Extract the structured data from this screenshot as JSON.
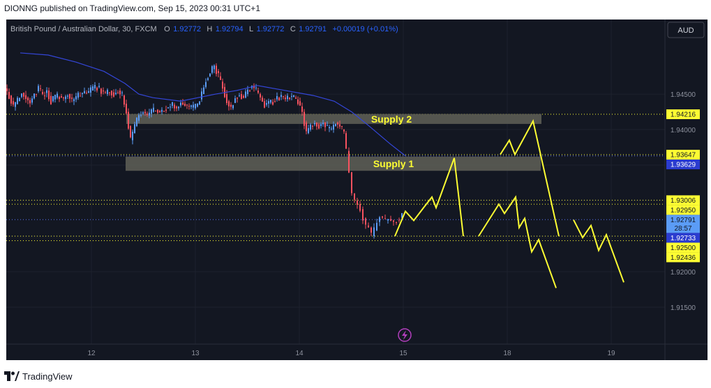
{
  "header": {
    "text": "DIONNG published on TradingView.com, Sep 15, 2023 00:31 UTC+1"
  },
  "footer": {
    "brand": "TradingView"
  },
  "symbol_bar": {
    "name": "British Pound / Australian Dollar, 30, FXCM",
    "o_label": "O",
    "o_value": "1.92772",
    "h_label": "H",
    "h_value": "1.92794",
    "l_label": "L",
    "l_value": "1.92772",
    "c_label": "C",
    "c_value": "1.92791",
    "change": "+0.00019 (+0.01%)"
  },
  "currency_button": "AUD",
  "chart_data": {
    "type": "candlestick",
    "x_ticks": [
      "12",
      "13",
      "14",
      "15",
      "18",
      "19"
    ],
    "y_ticks": [
      "1.94500",
      "1.94000",
      "1.93500",
      "1.93000",
      "1.92500",
      "1.92000",
      "1.91500"
    ],
    "ylim": [
      1.9098,
      1.9555
    ],
    "colors": {
      "up": "#5b9cf6",
      "down": "#f7525f",
      "ma": "#3446d9",
      "projection": "#fdfd33",
      "zone": "#5d5f55"
    },
    "zones": [
      {
        "label": "Supply 2",
        "y_high": 1.9422,
        "y_low": 1.9408
      },
      {
        "label": "Supply 1",
        "y_high": 1.9362,
        "y_low": 1.9342
      }
    ],
    "price_levels": [
      {
        "value": 1.94216,
        "label": "1.94216",
        "style": "yellow"
      },
      {
        "value": 1.93647,
        "label": "1.93647",
        "style": "yellow"
      },
      {
        "value": 1.93629,
        "label": "1.93629",
        "style": "blue"
      },
      {
        "value": 1.93006,
        "label": "1.93006",
        "style": "yellow"
      },
      {
        "value": 1.9295,
        "label": "1.92950",
        "style": "yellow"
      },
      {
        "value": 1.92791,
        "label": "1.92791",
        "style": "last"
      },
      {
        "value": 1.92733,
        "label": "1.92733",
        "style": "blue"
      },
      {
        "value": 1.925,
        "label": "1.92500",
        "style": "yellow"
      },
      {
        "value": 1.92436,
        "label": "1.92436",
        "style": "yellow"
      }
    ],
    "countdown": "28:57",
    "price_path": [
      [
        0,
        1.9458
      ],
      [
        6,
        1.9448
      ],
      [
        12,
        1.9432
      ],
      [
        18,
        1.944
      ],
      [
        24,
        1.9452
      ],
      [
        30,
        1.9445
      ],
      [
        36,
        1.9438
      ],
      [
        42,
        1.945
      ],
      [
        48,
        1.9458
      ],
      [
        54,
        1.9448
      ],
      [
        60,
        1.9455
      ],
      [
        66,
        1.944
      ],
      [
        72,
        1.9445
      ],
      [
        78,
        1.9447
      ],
      [
        84,
        1.9443
      ],
      [
        90,
        1.945
      ],
      [
        96,
        1.944
      ],
      [
        102,
        1.9445
      ],
      [
        108,
        1.945
      ],
      [
        114,
        1.9452
      ],
      [
        120,
        1.9452
      ],
      [
        126,
        1.9458
      ],
      [
        132,
        1.946
      ],
      [
        138,
        1.9455
      ],
      [
        144,
        1.945
      ],
      [
        150,
        1.9455
      ],
      [
        156,
        1.945
      ],
      [
        162,
        1.9455
      ],
      [
        168,
        1.9448
      ],
      [
        174,
        1.9425
      ],
      [
        180,
        1.9385
      ],
      [
        186,
        1.9405
      ],
      [
        192,
        1.942
      ],
      [
        198,
        1.9425
      ],
      [
        204,
        1.942
      ],
      [
        210,
        1.9425
      ],
      [
        216,
        1.9428
      ],
      [
        222,
        1.9425
      ],
      [
        228,
        1.9428
      ],
      [
        234,
        1.9432
      ],
      [
        240,
        1.9435
      ],
      [
        246,
        1.943
      ],
      [
        252,
        1.9438
      ],
      [
        258,
        1.9435
      ],
      [
        264,
        1.9432
      ],
      [
        270,
        1.943
      ],
      [
        276,
        1.9435
      ],
      [
        282,
        1.945
      ],
      [
        288,
        1.947
      ],
      [
        294,
        1.948
      ],
      [
        300,
        1.949
      ],
      [
        306,
        1.9475
      ],
      [
        312,
        1.946
      ],
      [
        318,
        1.944
      ],
      [
        324,
        1.943
      ],
      [
        330,
        1.9445
      ],
      [
        336,
        1.945
      ],
      [
        342,
        1.9445
      ],
      [
        348,
        1.9455
      ],
      [
        354,
        1.9462
      ],
      [
        360,
        1.9455
      ],
      [
        366,
        1.9445
      ],
      [
        372,
        1.9435
      ],
      [
        378,
        1.9438
      ],
      [
        384,
        1.944
      ],
      [
        390,
        1.9445
      ],
      [
        396,
        1.9447
      ],
      [
        402,
        1.9443
      ],
      [
        408,
        1.9447
      ],
      [
        414,
        1.9445
      ],
      [
        420,
        1.944
      ],
      [
        426,
        1.9425
      ],
      [
        432,
        1.9395
      ],
      [
        438,
        1.9405
      ],
      [
        444,
        1.941
      ],
      [
        450,
        1.9405
      ],
      [
        456,
        1.941
      ],
      [
        462,
        1.9402
      ],
      [
        468,
        1.94
      ],
      [
        474,
        1.941
      ],
      [
        480,
        1.9405
      ],
      [
        486,
        1.9395
      ],
      [
        490,
        1.937
      ],
      [
        494,
        1.934
      ],
      [
        498,
        1.931
      ],
      [
        502,
        1.93
      ],
      [
        506,
        1.9295
      ],
      [
        510,
        1.9288
      ],
      [
        514,
        1.9275
      ],
      [
        518,
        1.9265
      ],
      [
        522,
        1.9262
      ],
      [
        526,
        1.925
      ],
      [
        530,
        1.9258
      ],
      [
        534,
        1.927
      ],
      [
        538,
        1.9278
      ],
      [
        542,
        1.9275
      ],
      [
        546,
        1.9272
      ],
      [
        550,
        1.9274
      ],
      [
        554,
        1.9272
      ],
      [
        558,
        1.927
      ],
      [
        562,
        1.9273
      ],
      [
        566,
        1.9276
      ],
      [
        570,
        1.9279
      ]
    ],
    "ma_line": [
      [
        20,
        1.9508
      ],
      [
        60,
        1.9505
      ],
      [
        100,
        1.9495
      ],
      [
        140,
        1.9482
      ],
      [
        170,
        1.9465
      ],
      [
        190,
        1.945
      ],
      [
        210,
        1.9445
      ],
      [
        250,
        1.944
      ],
      [
        300,
        1.945
      ],
      [
        330,
        1.9455
      ],
      [
        360,
        1.9462
      ],
      [
        400,
        1.9455
      ],
      [
        440,
        1.9448
      ],
      [
        470,
        1.944
      ],
      [
        495,
        1.9425
      ],
      [
        520,
        1.9405
      ],
      [
        550,
        1.938
      ],
      [
        572,
        1.9363
      ]
    ],
    "projections": [
      {
        "points": [
          [
            557,
            1.925
          ],
          [
            572,
            1.9285
          ],
          [
            584,
            1.9272
          ],
          [
            598,
            1.929
          ],
          [
            610,
            1.9305
          ],
          [
            616,
            1.929
          ],
          [
            642,
            1.936
          ],
          [
            655,
            1.925
          ]
        ]
      },
      {
        "points": [
          [
            677,
            1.925
          ],
          [
            706,
            1.9295
          ],
          [
            714,
            1.9282
          ],
          [
            730,
            1.9305
          ],
          [
            735,
            1.9262
          ],
          [
            743,
            1.9275
          ],
          [
            753,
            1.9228
          ],
          [
            763,
            1.9245
          ],
          [
            788,
            1.9177
          ]
        ]
      },
      {
        "points": [
          [
            708,
            1.9365
          ],
          [
            721,
            1.9385
          ],
          [
            729,
            1.9365
          ],
          [
            755,
            1.9412
          ],
          [
            792,
            1.925
          ]
        ]
      },
      {
        "points": [
          [
            813,
            1.9273
          ],
          [
            826,
            1.9248
          ],
          [
            838,
            1.9265
          ],
          [
            849,
            1.923
          ],
          [
            860,
            1.9252
          ],
          [
            885,
            1.9185
          ]
        ]
      }
    ]
  }
}
